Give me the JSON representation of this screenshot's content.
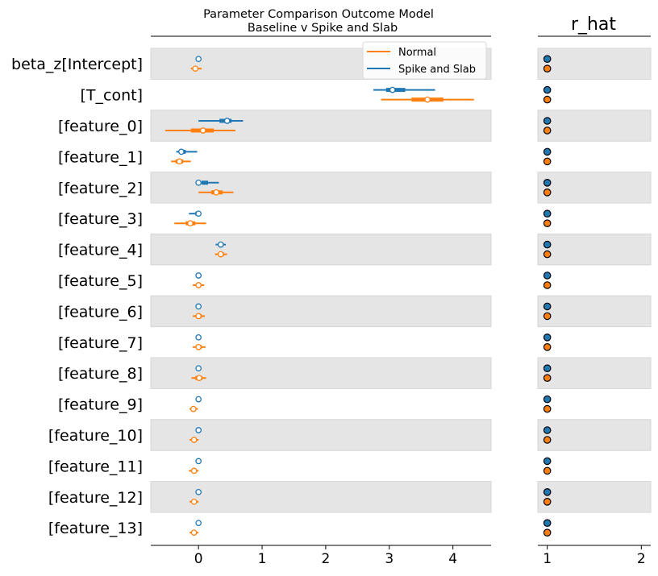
{
  "chart_data": [
    {
      "type": "forest",
      "title_line1": "Parameter Comparison Outcome Model",
      "title_line2": "Baseline v Spike and Slab",
      "xlim": [
        -0.75,
        4.6
      ],
      "xticks": [
        "0",
        "1",
        "2",
        "3",
        "4"
      ],
      "xtick_values": [
        0,
        1,
        2,
        3,
        4
      ],
      "legend_placement": "top-right",
      "series": [
        {
          "name": "Normal",
          "color": "#ff7f0e"
        },
        {
          "name": "Spike and Slab",
          "color": "#1f77b4"
        }
      ],
      "parameters": [
        {
          "label": "beta_z[Intercept]",
          "spike": {
            "mean": 0.0,
            "hdi94": [
              0.0,
              0.0
            ],
            "iqr": [
              0.0,
              0.0
            ]
          },
          "normal": {
            "mean": -0.05,
            "hdi94": [
              -0.12,
              0.05
            ],
            "iqr": [
              -0.08,
              -0.02
            ]
          }
        },
        {
          "label": "[T_cont]",
          "spike": {
            "mean": 3.05,
            "hdi94": [
              2.75,
              3.72
            ],
            "iqr": [
              2.95,
              3.25
            ]
          },
          "normal": {
            "mean": 3.6,
            "hdi94": [
              2.87,
              4.33
            ],
            "iqr": [
              3.35,
              3.85
            ]
          }
        },
        {
          "label": "[feature_0]",
          "spike": {
            "mean": 0.45,
            "hdi94": [
              0.0,
              0.7
            ],
            "iqr": [
              0.33,
              0.52
            ]
          },
          "normal": {
            "mean": 0.07,
            "hdi94": [
              -0.52,
              0.58
            ],
            "iqr": [
              -0.12,
              0.24
            ]
          }
        },
        {
          "label": "[feature_1]",
          "spike": {
            "mean": -0.27,
            "hdi94": [
              -0.35,
              -0.02
            ],
            "iqr": [
              -0.3,
              -0.2
            ]
          },
          "normal": {
            "mean": -0.3,
            "hdi94": [
              -0.43,
              -0.12
            ],
            "iqr": [
              -0.36,
              -0.24
            ]
          }
        },
        {
          "label": "[feature_2]",
          "spike": {
            "mean": 0.0,
            "hdi94": [
              0.0,
              0.32
            ],
            "iqr": [
              0.05,
              0.15
            ]
          },
          "normal": {
            "mean": 0.28,
            "hdi94": [
              0.0,
              0.55
            ],
            "iqr": [
              0.2,
              0.38
            ]
          }
        },
        {
          "label": "[feature_3]",
          "spike": {
            "mean": 0.0,
            "hdi94": [
              -0.15,
              0.0
            ],
            "iqr": [
              -0.05,
              0.0
            ]
          },
          "normal": {
            "mean": -0.13,
            "hdi94": [
              -0.38,
              0.12
            ],
            "iqr": [
              -0.2,
              -0.05
            ]
          }
        },
        {
          "label": "[feature_4]",
          "spike": {
            "mean": 0.35,
            "hdi94": [
              0.27,
              0.43
            ],
            "iqr": [
              0.32,
              0.39
            ]
          },
          "normal": {
            "mean": 0.35,
            "hdi94": [
              0.26,
              0.45
            ],
            "iqr": [
              0.31,
              0.4
            ]
          }
        },
        {
          "label": "[feature_5]",
          "spike": {
            "mean": 0.0,
            "hdi94": [
              0.0,
              0.0
            ],
            "iqr": [
              0.0,
              0.0
            ]
          },
          "normal": {
            "mean": 0.0,
            "hdi94": [
              -0.09,
              0.09
            ],
            "iqr": [
              -0.04,
              0.04
            ]
          }
        },
        {
          "label": "[feature_6]",
          "spike": {
            "mean": 0.0,
            "hdi94": [
              0.0,
              0.0
            ],
            "iqr": [
              0.0,
              0.0
            ]
          },
          "normal": {
            "mean": 0.0,
            "hdi94": [
              -0.09,
              0.1
            ],
            "iqr": [
              -0.04,
              0.05
            ]
          }
        },
        {
          "label": "[feature_7]",
          "spike": {
            "mean": 0.0,
            "hdi94": [
              0.0,
              0.0
            ],
            "iqr": [
              0.0,
              0.0
            ]
          },
          "normal": {
            "mean": 0.0,
            "hdi94": [
              -0.09,
              0.11
            ],
            "iqr": [
              -0.04,
              0.05
            ]
          }
        },
        {
          "label": "[feature_8]",
          "spike": {
            "mean": 0.0,
            "hdi94": [
              0.0,
              0.0
            ],
            "iqr": [
              0.0,
              0.0
            ]
          },
          "normal": {
            "mean": 0.01,
            "hdi94": [
              -0.11,
              0.12
            ],
            "iqr": [
              -0.05,
              0.06
            ]
          }
        },
        {
          "label": "[feature_9]",
          "spike": {
            "mean": 0.0,
            "hdi94": [
              0.0,
              0.0
            ],
            "iqr": [
              0.0,
              0.0
            ]
          },
          "normal": {
            "mean": -0.08,
            "hdi94": [
              -0.14,
              -0.01
            ],
            "iqr": [
              -0.11,
              -0.05
            ]
          }
        },
        {
          "label": "[feature_10]",
          "spike": {
            "mean": 0.0,
            "hdi94": [
              0.0,
              0.0
            ],
            "iqr": [
              0.0,
              0.0
            ]
          },
          "normal": {
            "mean": -0.07,
            "hdi94": [
              -0.14,
              0.0
            ],
            "iqr": [
              -0.1,
              -0.04
            ]
          }
        },
        {
          "label": "[feature_11]",
          "spike": {
            "mean": 0.0,
            "hdi94": [
              0.0,
              0.0
            ],
            "iqr": [
              0.0,
              0.0
            ]
          },
          "normal": {
            "mean": -0.07,
            "hdi94": [
              -0.15,
              0.0
            ],
            "iqr": [
              -0.1,
              -0.04
            ]
          }
        },
        {
          "label": "[feature_12]",
          "spike": {
            "mean": 0.0,
            "hdi94": [
              0.0,
              0.0
            ],
            "iqr": [
              0.0,
              0.0
            ]
          },
          "normal": {
            "mean": -0.07,
            "hdi94": [
              -0.14,
              0.0
            ],
            "iqr": [
              -0.1,
              -0.04
            ]
          }
        },
        {
          "label": "[feature_13]",
          "spike": {
            "mean": 0.0,
            "hdi94": [
              0.0,
              0.0
            ],
            "iqr": [
              0.0,
              0.0
            ]
          },
          "normal": {
            "mean": -0.07,
            "hdi94": [
              -0.14,
              0.0
            ],
            "iqr": [
              -0.1,
              -0.04
            ]
          }
        }
      ]
    },
    {
      "type": "scatter",
      "title": "r_hat",
      "xlim": [
        0.9,
        2.1
      ],
      "xticks": [
        "1",
        "2"
      ],
      "xtick_values": [
        1,
        2
      ],
      "spike_values": [
        1.0,
        1.0,
        1.0,
        1.0,
        1.0,
        1.0,
        1.0,
        1.0,
        1.0,
        1.0,
        1.0,
        1.0,
        1.0,
        1.0,
        1.0,
        1.0
      ],
      "normal_values": [
        1.0,
        1.0,
        1.0,
        1.0,
        1.0,
        1.0,
        1.0,
        1.0,
        1.0,
        1.0,
        1.0,
        1.0,
        1.0,
        1.0,
        1.0,
        1.0
      ]
    }
  ]
}
